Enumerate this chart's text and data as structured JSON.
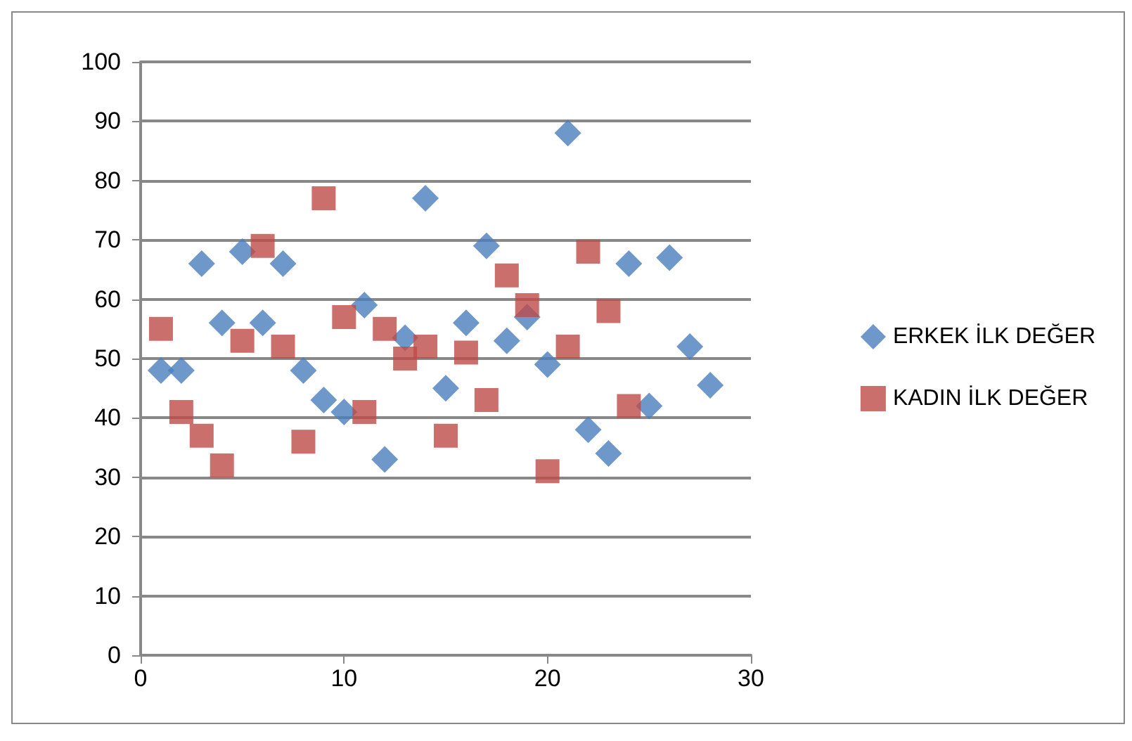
{
  "chart_data": {
    "type": "scatter",
    "x": [
      1,
      2,
      3,
      4,
      5,
      6,
      7,
      8,
      9,
      10,
      11,
      12,
      13,
      14,
      15,
      16,
      17,
      18,
      19,
      20,
      21,
      22,
      23,
      24,
      25,
      26,
      27,
      28
    ],
    "series": [
      {
        "name": "ERKEK İLK DEĞER",
        "color": "#4a7ebb",
        "marker": "diamond",
        "values": [
          48,
          48,
          66,
          56,
          68,
          56,
          66,
          48,
          43,
          41,
          59,
          33,
          53.5,
          77,
          45,
          56,
          69,
          53,
          57,
          49,
          88,
          38,
          34,
          66,
          42,
          67,
          52,
          45.5
        ]
      },
      {
        "name": "KADIN İLK DEĞER",
        "color": "#be4b48",
        "marker": "square",
        "x": [
          1,
          2,
          3,
          4,
          5,
          6,
          7,
          8,
          9,
          10,
          11,
          12,
          13,
          14,
          15,
          16,
          17,
          18,
          19,
          20,
          21,
          22,
          23,
          24
        ],
        "values": [
          55,
          41,
          37,
          32,
          53,
          69,
          52,
          36,
          77,
          57,
          41,
          55,
          50,
          52,
          37,
          51,
          43,
          64,
          59,
          31,
          52,
          68,
          58,
          42
        ]
      }
    ],
    "xlim": [
      0,
      30
    ],
    "xticks": [
      0,
      10,
      20,
      30
    ],
    "ylim": [
      0,
      100
    ],
    "yticks": [
      0,
      10,
      20,
      30,
      40,
      50,
      60,
      70,
      80,
      90,
      100
    ],
    "grid": "y",
    "legend": "right"
  }
}
